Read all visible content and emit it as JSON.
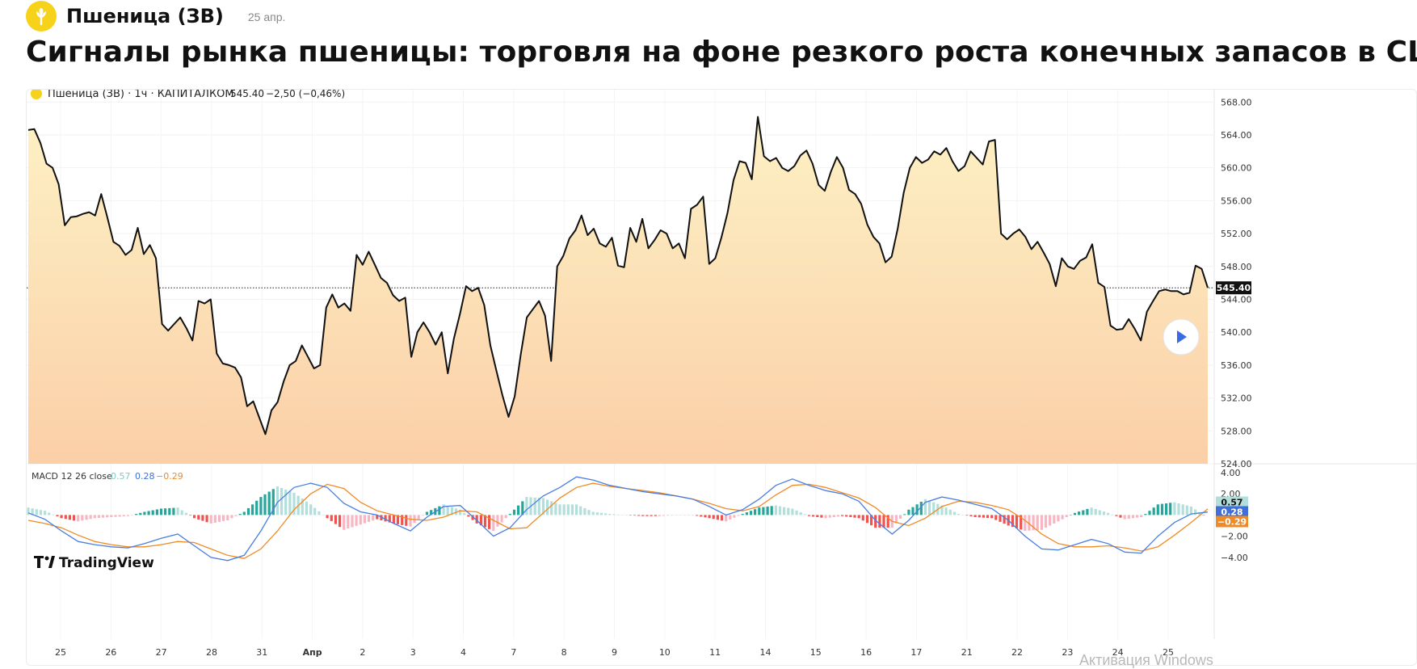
{
  "header": {
    "asset": "Пшеница (ЗВ)",
    "date": "25 апр."
  },
  "headline": "Сигналы рынка пшеницы: торговля на фоне резкого роста конечных запасов в США",
  "legend": {
    "symbol": "Пшеница (ЗВ) · 1ч · КАПИТАЛКОМ",
    "price": "545.40",
    "change": "−2,50 (−0,46%)"
  },
  "macd_legend": {
    "label": "MACD 12 26 close",
    "v1": "0.57",
    "v2": "0.28",
    "v3": "−0.29"
  },
  "branding": {
    "tv": "TradingView"
  },
  "overlay": {
    "windows": "Активация Windows"
  },
  "icons": {
    "logo": "wheat-icon",
    "play": "play-icon"
  },
  "colors": {
    "line": "#111111",
    "fill_top": "#fdf1c4",
    "fill_bottom": "#fbcfa8",
    "macd_line": "#4a7ee2",
    "signal_line": "#f08a24",
    "hist_pos": "#26a69a",
    "hist_pos_light": "#b2dfdb",
    "hist_neg": "#ef5350",
    "hist_neg_light": "#f7b6c2"
  },
  "chart_data": [
    {
      "type": "line",
      "title": "Пшеница (ЗВ) · 1ч · КАПИТАЛКОМ",
      "last_value": 545.4,
      "ylim": [
        524,
        569.5
      ],
      "y_ticks": [
        "568.00",
        "564.00",
        "560.00",
        "556.00",
        "552.00",
        "548.00",
        "544.00",
        "540.00",
        "536.00",
        "532.00",
        "528.00",
        "524.00"
      ],
      "x_tick_labels": [
        "25",
        "26",
        "27",
        "28",
        "31",
        "Апр",
        "2",
        "3",
        "4",
        "7",
        "8",
        "9",
        "10",
        "11",
        "14",
        "15",
        "16",
        "17",
        "21",
        "22",
        "23",
        "24",
        "25"
      ],
      "values": [
        564.6,
        564.7,
        563.0,
        560.5,
        560.0,
        558.0,
        553.0,
        554.0,
        554.1,
        554.4,
        554.6,
        554.2,
        556.8,
        554.0,
        551.0,
        550.5,
        549.4,
        550.0,
        552.7,
        549.5,
        550.6,
        549.0,
        541.0,
        540.2,
        541.0,
        541.8,
        540.5,
        539.0,
        543.8,
        543.5,
        544.0,
        537.4,
        536.2,
        536.0,
        535.7,
        534.5,
        531.0,
        531.6,
        529.6,
        527.6,
        530.5,
        531.5,
        534.0,
        536.0,
        536.5,
        538.4,
        537.0,
        535.6,
        536.0,
        543.0,
        544.6,
        543.0,
        543.5,
        542.6,
        549.4,
        548.2,
        549.8,
        548.2,
        546.6,
        546.0,
        544.5,
        543.8,
        544.2,
        537.0,
        540.0,
        541.2,
        540.0,
        538.5,
        540.0,
        535.0,
        539.2,
        542.2,
        545.6,
        545.0,
        545.4,
        543.3,
        538.4,
        535.3,
        532.3,
        529.7,
        532.2,
        537.3,
        541.8,
        542.8,
        543.8,
        542.0,
        536.5,
        548.0,
        549.3,
        551.4,
        552.4,
        554.2,
        551.8,
        552.6,
        550.8,
        550.4,
        551.5,
        548.1,
        547.9,
        552.7,
        551.0,
        553.8,
        550.2,
        551.2,
        552.4,
        552.0,
        550.2,
        550.8,
        549.0,
        555.0,
        555.5,
        556.5,
        548.3,
        549.0,
        551.5,
        554.5,
        558.5,
        560.8,
        560.6,
        558.6,
        566.2,
        561.4,
        560.8,
        561.2,
        560.0,
        559.6,
        560.2,
        561.5,
        562.1,
        560.5,
        557.9,
        557.2,
        559.5,
        561.3,
        560.0,
        557.3,
        556.8,
        555.6,
        553.1,
        551.6,
        550.8,
        548.5,
        549.2,
        552.6,
        557.0,
        560.0,
        561.3,
        560.6,
        561.0,
        562.0,
        561.6,
        562.4,
        560.8,
        559.6,
        560.2,
        562.0,
        561.2,
        560.4,
        563.2,
        563.4,
        552.0,
        551.3,
        552.0,
        552.5,
        551.6,
        550.1,
        551.0,
        549.7,
        548.3,
        545.6,
        549.0,
        548.0,
        547.7,
        548.7,
        549.1,
        550.7,
        546.0,
        545.5,
        540.8,
        540.3,
        540.4,
        541.6,
        540.4,
        539.0,
        542.5,
        543.8,
        545.0,
        545.2,
        545.0,
        545.0,
        544.6,
        544.8,
        548.1,
        547.7,
        545.4
      ]
    },
    {
      "type": "line",
      "title": "MACD 12 26 close",
      "ylim": [
        -5.0,
        4.3
      ],
      "y_ticks": [
        "4.00",
        "2.00",
        "−2.00",
        "−4.00"
      ],
      "series": [
        {
          "name": "MACD",
          "values": [
            0.2,
            -0.4,
            -1.5,
            -2.5,
            -2.8,
            -3.0,
            -3.1,
            -2.7,
            -2.2,
            -1.8,
            -2.9,
            -4.0,
            -4.3,
            -3.8,
            -1.5,
            1.2,
            2.6,
            3.0,
            2.6,
            1.1,
            0.3,
            0.0,
            -0.8,
            -1.5,
            -0.2,
            0.8,
            0.9,
            -0.5,
            -2.0,
            -1.2,
            0.5,
            1.8,
            2.6,
            3.6,
            3.3,
            2.8,
            2.5,
            2.2,
            2.0,
            1.8,
            1.5,
            0.8,
            0.0,
            0.5,
            1.5,
            2.8,
            3.4,
            2.8,
            2.3,
            2.0,
            1.3,
            -0.5,
            -1.8,
            -0.5,
            1.2,
            1.7,
            1.4,
            1.0,
            0.6,
            -0.5,
            -2.0,
            -3.2,
            -3.3,
            -2.8,
            -2.3,
            -2.7,
            -3.5,
            -3.6,
            -2.0,
            -0.7,
            0.1,
            0.28
          ]
        },
        {
          "name": "Signal",
          "values": [
            -0.5,
            -0.8,
            -1.2,
            -1.9,
            -2.5,
            -2.8,
            -3.0,
            -3.0,
            -2.8,
            -2.5,
            -2.6,
            -3.2,
            -3.8,
            -4.1,
            -3.2,
            -1.5,
            0.5,
            2.0,
            2.9,
            2.5,
            1.2,
            0.4,
            0.0,
            -0.4,
            -0.5,
            -0.2,
            0.4,
            0.3,
            -0.5,
            -1.3,
            -1.2,
            0.2,
            1.6,
            2.6,
            3.0,
            2.7,
            2.5,
            2.3,
            2.1,
            1.8,
            1.5,
            1.1,
            0.6,
            0.4,
            0.8,
            1.9,
            2.8,
            2.9,
            2.6,
            2.1,
            1.6,
            0.7,
            -0.6,
            -1.0,
            -0.3,
            0.8,
            1.3,
            1.2,
            0.9,
            0.5,
            -0.5,
            -1.8,
            -2.7,
            -3.0,
            -3.0,
            -2.9,
            -3.1,
            -3.4,
            -3.0,
            -1.9,
            -0.7,
            0.57
          ]
        }
      ],
      "histogram_last": -0.29
    }
  ]
}
